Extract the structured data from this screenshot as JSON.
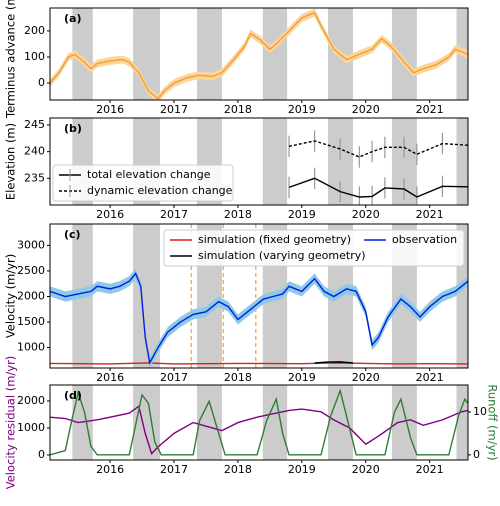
{
  "shaded_spans": [
    [
      2015.41,
      2015.73
    ],
    [
      2016.36,
      2016.78
    ],
    [
      2017.36,
      2017.75
    ],
    [
      2018.39,
      2018.77
    ],
    [
      2019.41,
      2019.8
    ],
    [
      2020.41,
      2020.8
    ],
    [
      2021.42,
      2021.8
    ]
  ],
  "chart_data": [
    {
      "type": "line",
      "annotation": "(a)",
      "ylabel": "Terminus advance (m)",
      "xlim": [
        2015.06,
        2021.6
      ],
      "ylim": [
        -65,
        288
      ],
      "xticks": [
        2016,
        2017,
        2018,
        2019,
        2020,
        2021
      ],
      "yticks": [
        0,
        100,
        200
      ],
      "series": [
        {
          "color": "#f0a030",
          "band_color": "#fdd49a",
          "uncertainty": 15,
          "x": [
            2015.06,
            2015.2,
            2015.35,
            2015.45,
            2015.6,
            2015.7,
            2015.8,
            2016.0,
            2016.2,
            2016.3,
            2016.45,
            2016.6,
            2016.75,
            2016.85,
            2017.0,
            2017.2,
            2017.4,
            2017.6,
            2017.75,
            2017.9,
            2018.1,
            2018.2,
            2018.35,
            2018.5,
            2018.6,
            2018.8,
            2019.0,
            2019.2,
            2019.3,
            2019.5,
            2019.7,
            2019.9,
            2020.1,
            2020.25,
            2020.4,
            2020.6,
            2020.75,
            2020.9,
            2021.1,
            2021.3,
            2021.4,
            2021.6
          ],
          "values": [
            0,
            40,
            100,
            110,
            80,
            55,
            75,
            85,
            90,
            80,
            40,
            -30,
            -60,
            -30,
            0,
            20,
            30,
            25,
            40,
            80,
            140,
            190,
            165,
            130,
            150,
            200,
            250,
            270,
            220,
            130,
            90,
            110,
            130,
            170,
            140,
            80,
            40,
            55,
            70,
            100,
            130,
            110
          ]
        }
      ]
    },
    {
      "type": "line",
      "annotation": "(b)",
      "ylabel": "Elevation (m)",
      "xlim": [
        2015.06,
        2021.6
      ],
      "ylim": [
        230,
        246.3
      ],
      "xticks": [
        2016,
        2017,
        2018,
        2019,
        2020,
        2021
      ],
      "yticks": [
        235,
        240,
        245
      ],
      "legend": "lower left",
      "series": [
        {
          "name": "total elevation change",
          "color": "#000000",
          "error_color": "#999999",
          "x": [
            2018.8,
            2019.2,
            2019.6,
            2019.9,
            2020.1,
            2020.3,
            2020.6,
            2020.8,
            2021.2,
            2021.6
          ],
          "values": [
            233.3,
            235,
            232.5,
            231.5,
            231.6,
            233.2,
            233,
            231.5,
            233.5,
            233.4
          ],
          "errors": [
            2,
            2,
            2,
            2,
            2,
            2,
            2,
            2,
            2,
            2
          ]
        },
        {
          "name": "dynamic elevation change",
          "color": "#000000",
          "error_color": "#999999",
          "dashed": true,
          "x": [
            2018.8,
            2019.2,
            2019.6,
            2019.9,
            2020.1,
            2020.3,
            2020.6,
            2020.8,
            2021.2,
            2021.6
          ],
          "values": [
            241,
            242,
            240.5,
            239,
            240,
            240.8,
            240.8,
            239.5,
            241.5,
            241.2
          ],
          "errors": [
            2,
            2,
            2,
            2,
            2,
            2,
            2,
            2,
            2,
            2
          ]
        }
      ]
    },
    {
      "type": "line",
      "annotation": "(c)",
      "ylabel": "Velocity (m/yr)",
      "xlim": [
        2015.06,
        2021.6
      ],
      "ylim": [
        600,
        3420
      ],
      "xticks": [
        2016,
        2017,
        2018,
        2019,
        2020,
        2021
      ],
      "yticks": [
        1000,
        1500,
        2000,
        2500,
        3000
      ],
      "legend": "upper center",
      "vlines": [
        2017.27,
        2017.77,
        2018.28
      ],
      "vline_color": "#f5a030",
      "series": [
        {
          "name": "simulation (fixed geometry)",
          "color": "#e41a1c",
          "x": [
            2015.06,
            2016.0,
            2016.6,
            2017.0,
            2018.0,
            2019.0,
            2019.5,
            2020.0,
            2020.5,
            2021.0,
            2021.6
          ],
          "values": [
            690,
            680,
            700,
            680,
            690,
            685,
            700,
            690,
            680,
            685,
            680
          ]
        },
        {
          "name": "simulation (varying geometry)",
          "color": "#000000",
          "x": [
            2019.2,
            2019.4,
            2019.6,
            2019.8
          ],
          "values": [
            700,
            715,
            720,
            700
          ]
        },
        {
          "name": "observation",
          "color": "#0020e0",
          "band_color": "#8ecae6",
          "uncertainty": 100,
          "x": [
            2015.06,
            2015.3,
            2015.5,
            2015.7,
            2015.8,
            2016.0,
            2016.15,
            2016.3,
            2016.4,
            2016.48,
            2016.55,
            2016.62,
            2016.75,
            2016.9,
            2017.1,
            2017.3,
            2017.5,
            2017.7,
            2017.85,
            2018.0,
            2018.2,
            2018.4,
            2018.55,
            2018.7,
            2018.8,
            2019.0,
            2019.2,
            2019.35,
            2019.5,
            2019.7,
            2019.85,
            2020.0,
            2020.1,
            2020.2,
            2020.35,
            2020.55,
            2020.7,
            2020.85,
            2021.0,
            2021.2,
            2021.4,
            2021.6
          ],
          "values": [
            2100,
            2000,
            2050,
            2100,
            2200,
            2150,
            2200,
            2300,
            2450,
            2200,
            1200,
            700,
            1000,
            1300,
            1500,
            1650,
            1700,
            1900,
            1800,
            1550,
            1750,
            1950,
            2000,
            2050,
            2200,
            2100,
            2350,
            2100,
            2000,
            2150,
            2100,
            1700,
            1050,
            1200,
            1600,
            1950,
            1800,
            1600,
            1800,
            2000,
            2100,
            2300
          ]
        }
      ]
    },
    {
      "type": "line",
      "annotation": "(d)",
      "ylabel": "Velocity residual (m/yr)",
      "ylabel_color": "#800080",
      "y2label": "Runoff (m/yr)",
      "y2label_color": "#2e7d32",
      "xlim": [
        2015.06,
        2021.6
      ],
      "ylim": [
        -185,
        2590
      ],
      "xticks": [
        2016,
        2017,
        2018,
        2019,
        2020,
        2021
      ],
      "yticks": [
        0,
        1000,
        2000
      ],
      "y2lim": [
        -1.2,
        16.3
      ],
      "y2ticks": [
        0,
        10
      ],
      "series": [
        {
          "color": "#800080",
          "x": [
            2015.06,
            2015.3,
            2015.5,
            2015.8,
            2016.0,
            2016.3,
            2016.45,
            2016.55,
            2016.65,
            2016.75,
            2017.0,
            2017.3,
            2017.6,
            2017.75,
            2018.0,
            2018.3,
            2018.5,
            2018.8,
            2019.0,
            2019.3,
            2019.5,
            2019.75,
            2020.0,
            2020.2,
            2020.5,
            2020.7,
            2020.9,
            2021.2,
            2021.5,
            2021.6
          ],
          "values": [
            1400,
            1350,
            1200,
            1300,
            1400,
            1550,
            1800,
            800,
            50,
            300,
            800,
            1200,
            1000,
            900,
            1200,
            1400,
            1500,
            1650,
            1700,
            1600,
            1300,
            1000,
            400,
            700,
            1200,
            1300,
            1100,
            1300,
            1600,
            1650
          ]
        },
        {
          "color": "#2e7d32",
          "axis": "y2",
          "x": [
            2015.06,
            2015.3,
            2015.4,
            2015.5,
            2015.6,
            2015.7,
            2015.8,
            2016.3,
            2016.4,
            2016.5,
            2016.6,
            2016.7,
            2016.8,
            2017.3,
            2017.4,
            2017.55,
            2017.7,
            2017.8,
            2018.3,
            2018.45,
            2018.6,
            2018.7,
            2018.8,
            2019.3,
            2019.45,
            2019.6,
            2019.75,
            2019.85,
            2020.3,
            2020.45,
            2020.55,
            2020.7,
            2020.8,
            2021.3,
            2021.45,
            2021.55,
            2021.6
          ],
          "values": [
            0,
            1,
            8,
            14.5,
            10,
            2,
            0,
            0,
            7,
            14,
            12,
            3,
            0,
            0,
            8,
            12.5,
            5,
            0,
            0,
            8,
            13,
            5,
            0,
            0,
            9,
            15,
            6,
            0,
            0,
            10,
            13,
            4,
            0,
            0,
            9,
            13,
            12
          ]
        }
      ]
    }
  ]
}
